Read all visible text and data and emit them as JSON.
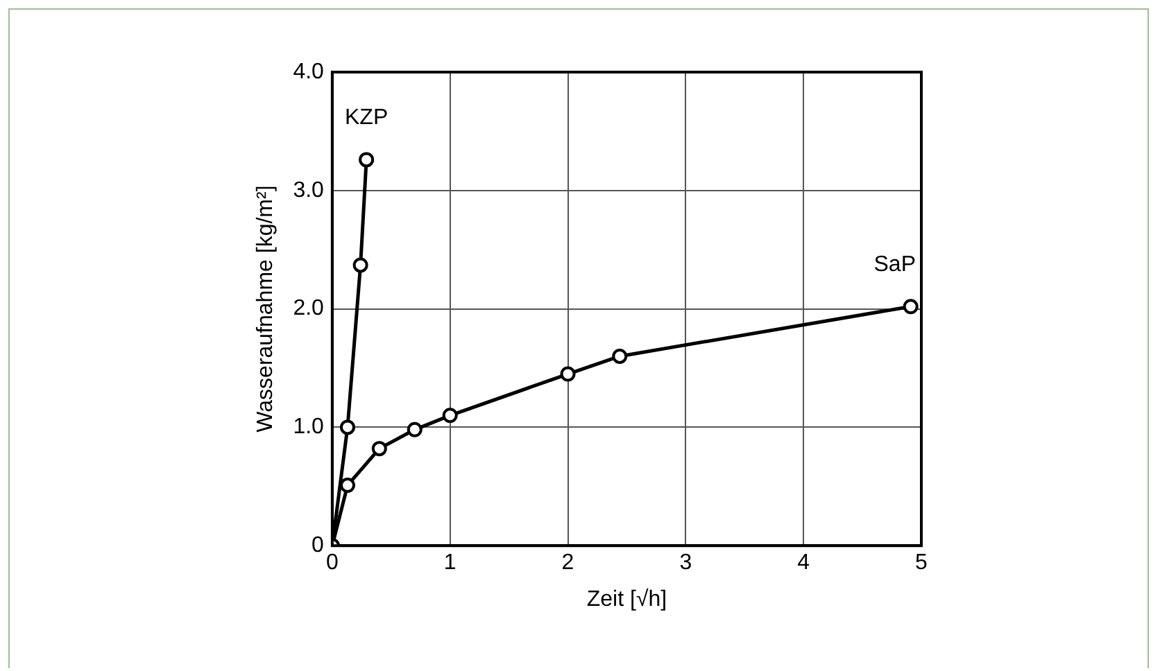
{
  "chart_data": {
    "type": "line",
    "xlabel": "Zeit [√h]",
    "ylabel": "Wasseraufnahme [kg/m²]",
    "xlim": [
      0,
      5
    ],
    "xticks": [
      0,
      1,
      2,
      3,
      4,
      5
    ],
    "ylim": [
      0,
      4
    ],
    "yticks": [
      0,
      {
        "value": 1,
        "label": "1.0"
      },
      {
        "value": 2,
        "label": "2.0"
      },
      {
        "value": 3,
        "label": "3.0"
      },
      {
        "value": 4,
        "label": "4.0"
      }
    ],
    "grid": true,
    "legend": false,
    "marker": "circle",
    "line_style": "solid",
    "series": [
      {
        "name": "KZP",
        "color": "#000000",
        "x": [
          0,
          0.13,
          0.24,
          0.29
        ],
        "values": [
          0,
          1.0,
          2.37,
          3.26
        ]
      },
      {
        "name": "SaP",
        "color": "#000000",
        "x": [
          0,
          0.13,
          0.4,
          0.7,
          1.0,
          2.0,
          2.44,
          4.91
        ],
        "values": [
          0,
          0.51,
          0.82,
          0.98,
          1.1,
          1.45,
          1.6,
          2.02
        ]
      }
    ]
  }
}
